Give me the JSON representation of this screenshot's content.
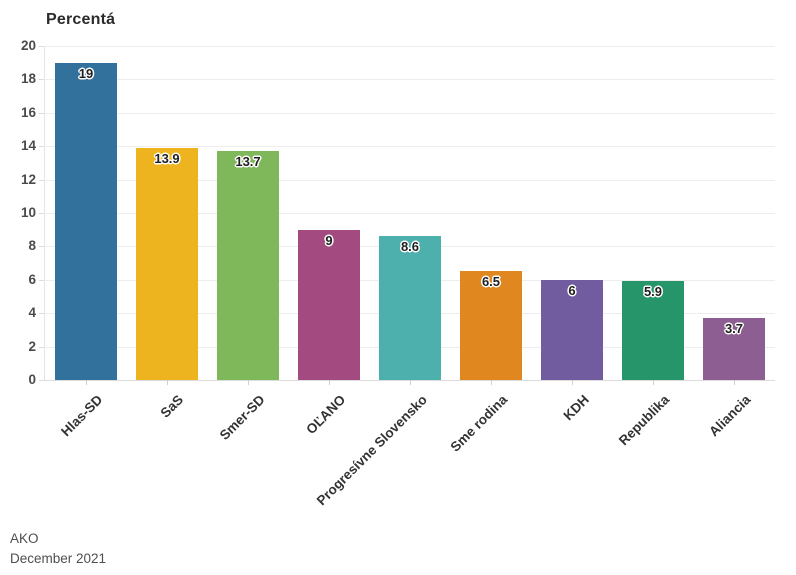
{
  "title": "Percentá",
  "chart_data": {
    "type": "bar",
    "title": "Percentá",
    "categories": [
      "Hlas-SD",
      "SaS",
      "Smer-SD",
      "OĽANO",
      "Progresívne Slovensko",
      "Sme rodina",
      "KDH",
      "Republika",
      "Aliancia"
    ],
    "values": [
      19,
      13.9,
      13.7,
      9,
      8.6,
      6.5,
      6,
      5.9,
      3.7
    ],
    "value_labels": [
      "19",
      "13.9",
      "13.7",
      "9",
      "8.6",
      "6.5",
      "6",
      "5.9",
      "3.7"
    ],
    "bar_colors": [
      "#32719C",
      "#EDB420",
      "#7FB85A",
      "#A34B80",
      "#4EB0AC",
      "#E0871F",
      "#705C9F",
      "#26966A",
      "#8D5E91"
    ],
    "xlabel": "",
    "ylabel": "",
    "ylim": [
      0,
      20
    ],
    "yticks": [
      0,
      2,
      4,
      6,
      8,
      10,
      12,
      14,
      16,
      18,
      20
    ],
    "grid": "horizontal-only",
    "legend": "none",
    "bar_label_position": "inside-top",
    "x_label_rotation_deg": -45
  },
  "footer": {
    "source": "AKO",
    "date": "December 2021"
  }
}
